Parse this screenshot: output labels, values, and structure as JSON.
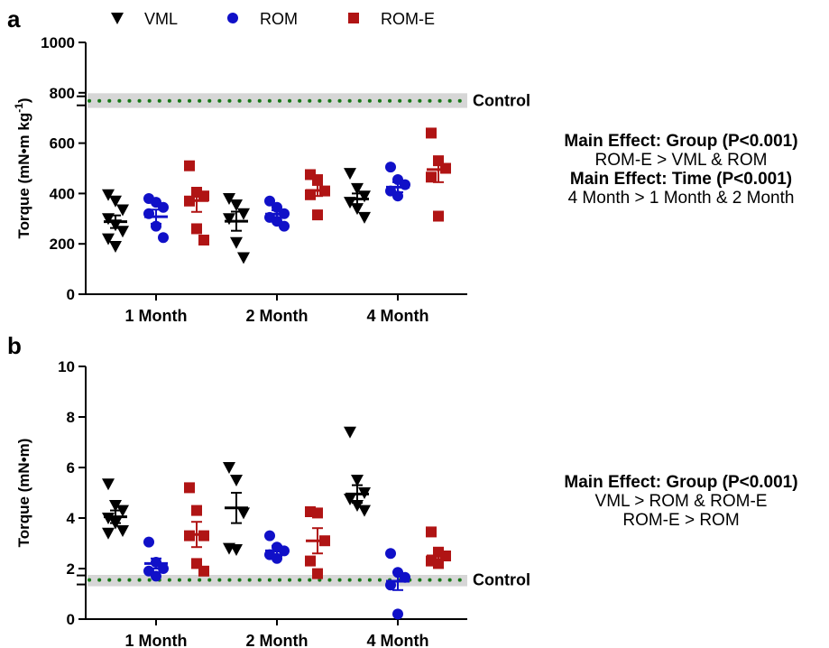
{
  "legend": [
    {
      "label": "VML",
      "marker": "triangle-down",
      "color": "#000000"
    },
    {
      "label": "ROM",
      "marker": "circle",
      "color": "#1010c8"
    },
    {
      "label": "ROM-E",
      "marker": "square",
      "color": "#b01414"
    }
  ],
  "colors": {
    "VML": "#000000",
    "ROM": "#1010c8",
    "ROM-E": "#b01414",
    "control_dots": "#1a7a1a",
    "control_band": "#d6d6d6"
  },
  "chart_data": [
    {
      "type": "scatter",
      "panel_label": "a",
      "ylabel": "Torque (mN•m kg",
      "ylabel_sup": "-1",
      "ylabel_end": ")",
      "ylim": [
        0,
        1000
      ],
      "yticks": [
        "0",
        "200",
        "400",
        "600",
        "800",
        "1000"
      ],
      "y_break": true,
      "categories": [
        "1 Month",
        "2 Month",
        "4 Month"
      ],
      "control": {
        "label": "Control",
        "mean": 768,
        "band": [
          740,
          798
        ]
      },
      "series": [
        {
          "name": "VML",
          "means": [
            288,
            290,
            378
          ],
          "sem": [
            25,
            38,
            22
          ],
          "points": [
            [
              395,
              370,
              335,
              300,
              275,
              250,
              220,
              190
            ],
            [
              380,
              355,
              320,
              300,
              205,
              145
            ],
            [
              480,
              420,
              390,
              365,
              340,
              305
            ]
          ]
        },
        {
          "name": "ROM",
          "means": [
            308,
            318,
            425
          ],
          "sem": [
            28,
            15,
            20
          ],
          "points": [
            [
              380,
              365,
              345,
              320,
              270,
              225
            ],
            [
              370,
              345,
              320,
              305,
              290,
              270
            ],
            [
              505,
              455,
              435,
              410,
              390
            ]
          ]
        },
        {
          "name": "ROM-E",
          "means": [
            372,
            412,
            495
          ],
          "sem": [
            45,
            22,
            50
          ],
          "points": [
            [
              510,
              405,
              390,
              370,
              260,
              215
            ],
            [
              475,
              455,
              410,
              395,
              315
            ],
            [
              640,
              530,
              500,
              465,
              310
            ]
          ]
        }
      ]
    },
    {
      "type": "scatter",
      "panel_label": "b",
      "ylabel": "Torque (mN•m)",
      "ylim": [
        0,
        10
      ],
      "yticks": [
        "0",
        "2",
        "4",
        "6",
        "8",
        "10"
      ],
      "y_break": true,
      "categories": [
        "1 Month",
        "2 Month",
        "4 Month"
      ],
      "control": {
        "label": "Control",
        "mean": 1.55,
        "band": [
          1.3,
          1.75
        ]
      },
      "series": [
        {
          "name": "VML",
          "means": [
            4.05,
            4.4,
            4.95
          ],
          "sem": [
            0.25,
            0.6,
            0.35
          ],
          "points": [
            [
              5.35,
              4.5,
              4.3,
              4.0,
              3.8,
              3.5,
              3.4
            ],
            [
              6.0,
              5.5,
              4.2,
              2.8,
              2.75
            ],
            [
              7.4,
              5.5,
              5.0,
              4.75,
              4.5,
              4.3
            ]
          ]
        },
        {
          "name": "ROM",
          "means": [
            2.2,
            2.7,
            1.5
          ],
          "sem": [
            0.2,
            0.2,
            0.35
          ],
          "points": [
            [
              3.05,
              2.25,
              2.0,
              1.9,
              1.7
            ],
            [
              3.3,
              2.85,
              2.7,
              2.55,
              2.4
            ],
            [
              2.6,
              1.85,
              1.65,
              1.35,
              0.2
            ]
          ]
        },
        {
          "name": "ROM-E",
          "means": [
            3.35,
            3.1,
            2.5
          ],
          "sem": [
            0.5,
            0.5,
            0.2
          ],
          "points": [
            [
              5.2,
              4.3,
              3.3,
              3.3,
              2.2,
              1.9
            ],
            [
              4.25,
              4.2,
              3.1,
              2.3,
              1.8
            ],
            [
              3.45,
              2.65,
              2.5,
              2.3,
              2.2
            ]
          ]
        }
      ]
    }
  ],
  "annotations": {
    "a": {
      "line1": "Main Effect:  Group (P<0.001)",
      "line2": "ROM-E > VML & ROM",
      "line3": "Main Effect: Time (P<0.001)",
      "line4": "4 Month > 1 Month & 2 Month"
    },
    "b": {
      "line1": "Main Effect:  Group (P<0.001)",
      "line2": "VML > ROM & ROM-E",
      "line3": "ROM-E > ROM"
    }
  }
}
